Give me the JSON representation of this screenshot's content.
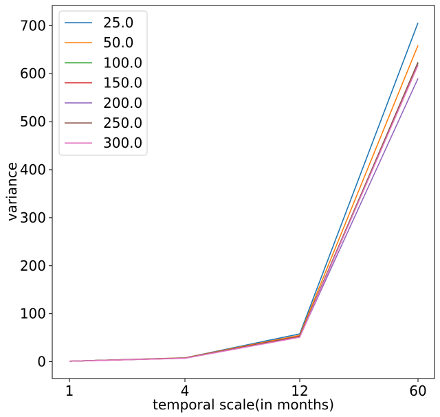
{
  "chart_data": {
    "type": "line",
    "title": "",
    "xlabel": "temporal scale(in months)",
    "ylabel": "variance",
    "categories": [
      "1",
      "4",
      "12",
      "60"
    ],
    "ylim": [
      -35,
      742
    ],
    "yticks": [
      0,
      100,
      200,
      300,
      400,
      500,
      600,
      700
    ],
    "grid": false,
    "legend_position": "top-left",
    "series": [
      {
        "name": "25.0",
        "color": "#1f77b4",
        "values": [
          1.0,
          8.0,
          58.0,
          706.0
        ]
      },
      {
        "name": "50.0",
        "color": "#ff7f0e",
        "values": [
          1.0,
          8.0,
          55.0,
          659.0
        ]
      },
      {
        "name": "100.0",
        "color": "#2ca02c",
        "values": [
          1.0,
          7.5,
          53.0,
          622.0
        ]
      },
      {
        "name": "150.0",
        "color": "#d62728",
        "values": [
          1.0,
          7.5,
          53.0,
          618.0
        ]
      },
      {
        "name": "200.0",
        "color": "#9467bd",
        "values": [
          1.0,
          7.5,
          52.0,
          590.0
        ]
      },
      {
        "name": "250.0",
        "color": "#8c564b",
        "values": [
          1.0,
          7.5,
          52.0,
          624.0
        ]
      },
      {
        "name": "300.0",
        "color": "#e377c2",
        "values": [
          1.0,
          7.0,
          51.0,
          618.0
        ]
      }
    ]
  }
}
